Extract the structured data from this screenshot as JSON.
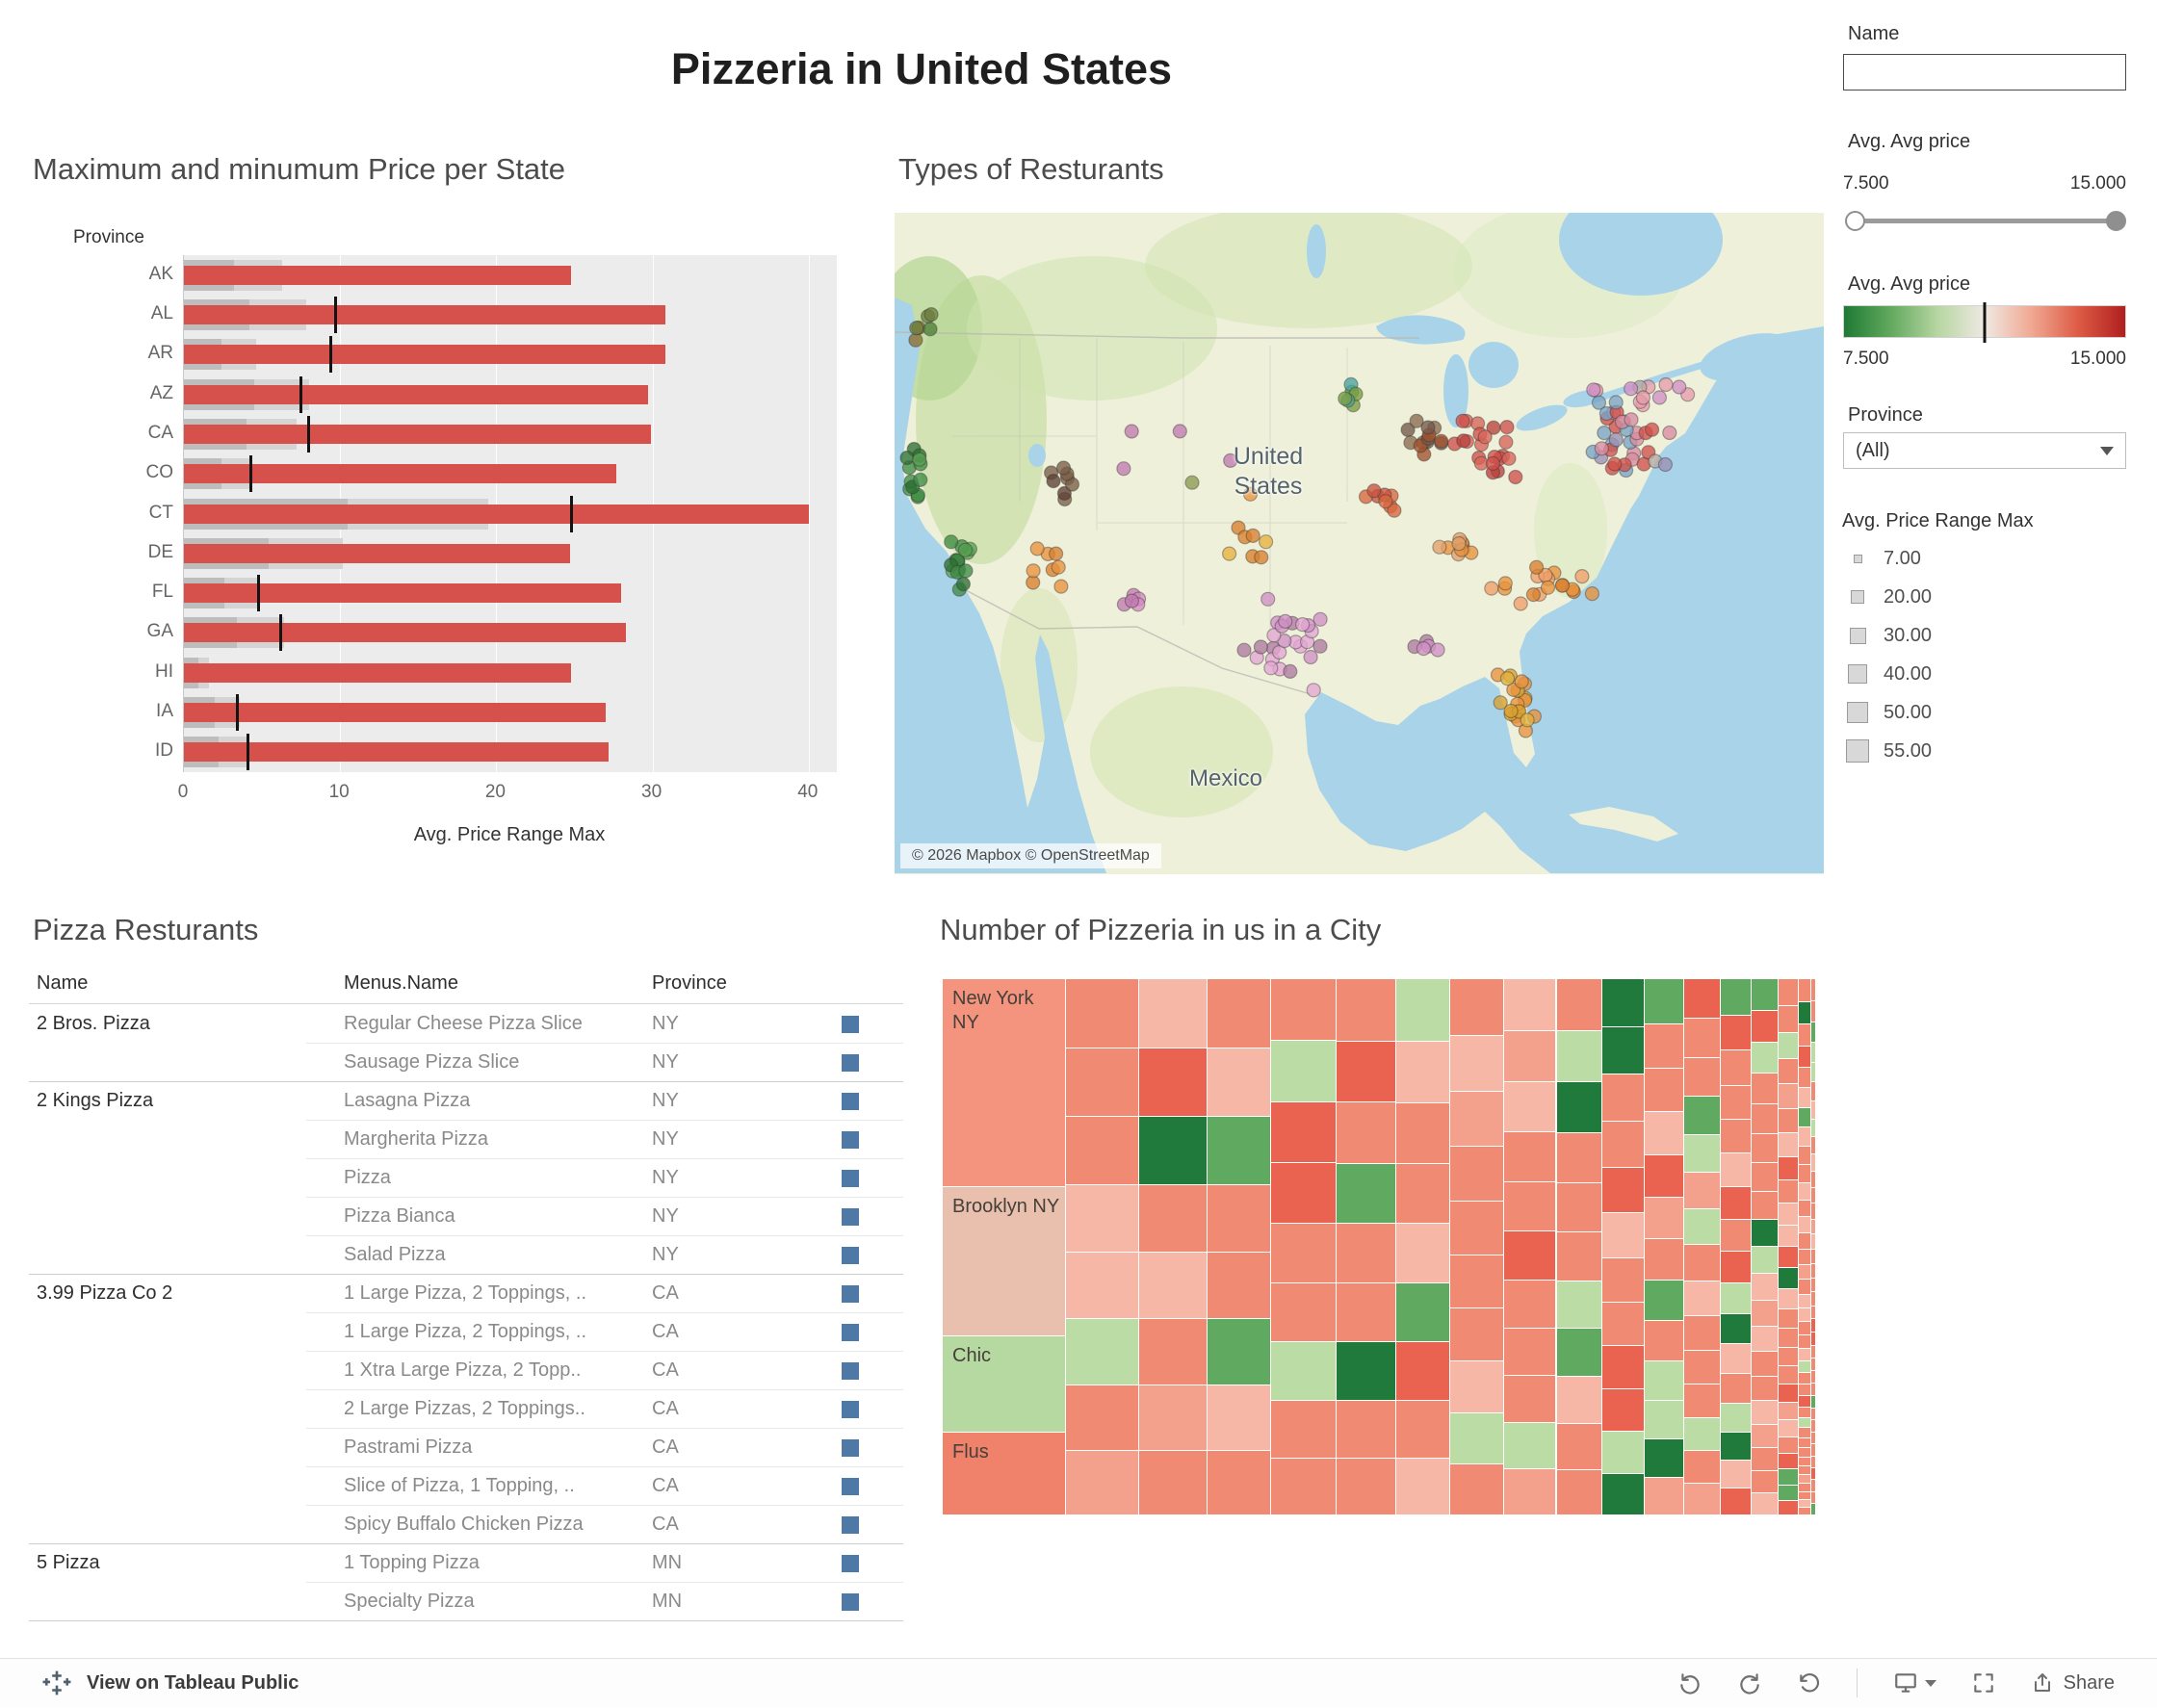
{
  "app": {
    "title": "Pizzeria in United States"
  },
  "toolbar": {
    "view_label": "View on Tableau Public",
    "share_label": "Share"
  },
  "sidebar": {
    "name_filter": {
      "label": "Name",
      "value": ""
    },
    "price_slider": {
      "title": "Avg. Avg price",
      "min_label": "7.500",
      "max_label": "15.000"
    },
    "color_legend": {
      "title": "Avg. Avg price",
      "min_label": "7.500",
      "max_label": "15.000",
      "stops": [
        "#1e7a34",
        "#63a95f",
        "#b7d6a2",
        "#efe9e2",
        "#f0a893",
        "#dd5b45",
        "#b01f1f"
      ],
      "tick_pos": 0.5
    },
    "province_filter": {
      "label": "Province",
      "value": "(All)"
    },
    "size_legend": {
      "title": "Avg. Price Range Max",
      "items": [
        {
          "label": "7.00",
          "size": 9
        },
        {
          "label": "20.00",
          "size": 14
        },
        {
          "label": "30.00",
          "size": 17
        },
        {
          "label": "40.00",
          "size": 20
        },
        {
          "label": "50.00",
          "size": 22
        },
        {
          "label": "55.00",
          "size": 24
        }
      ]
    }
  },
  "chart_data": [
    {
      "type": "bar",
      "title": "Maximum and minumum Price per State",
      "row_header": "Province",
      "xlabel": "Avg. Price Range Max",
      "x_ticks": [
        0,
        10,
        20,
        30,
        40
      ],
      "x_max": 41.8,
      "bar_color": "#d6504c",
      "band_color": "#d4d4d4",
      "band_dark_color": "#bdbdbd",
      "ref_color": "#141414",
      "states": [
        {
          "label": "AK",
          "max": 24.8,
          "band": 6.3,
          "band_dark": 3.2,
          "ref": null
        },
        {
          "label": "AL",
          "max": 30.8,
          "band": 7.8,
          "band_dark": 4.2,
          "ref": 9.7
        },
        {
          "label": "AR",
          "max": 30.8,
          "band": 4.6,
          "band_dark": 2.4,
          "ref": 9.4
        },
        {
          "label": "AZ",
          "max": 29.7,
          "band": 8.0,
          "band_dark": 4.5,
          "ref": 7.5
        },
        {
          "label": "CA",
          "max": 29.9,
          "band": 7.2,
          "band_dark": 4.0,
          "ref": 8.0
        },
        {
          "label": "CO",
          "max": 27.7,
          "band": 4.4,
          "band_dark": 2.4,
          "ref": 4.3
        },
        {
          "label": "CT",
          "max": 40.0,
          "band": 19.5,
          "band_dark": 10.5,
          "ref": 24.8
        },
        {
          "label": "DE",
          "max": 24.7,
          "band": 10.2,
          "band_dark": 5.4,
          "ref": null
        },
        {
          "label": "FL",
          "max": 28.0,
          "band": 4.9,
          "band_dark": 2.6,
          "ref": 4.8
        },
        {
          "label": "GA",
          "max": 28.3,
          "band": 6.4,
          "band_dark": 3.4,
          "ref": 6.2
        },
        {
          "label": "HI",
          "max": 24.8,
          "band": 1.6,
          "band_dark": 0.9,
          "ref": null
        },
        {
          "label": "IA",
          "max": 27.0,
          "band": 3.6,
          "band_dark": 2.0,
          "ref": 3.4
        },
        {
          "label": "ID",
          "max": 27.2,
          "band": 4.1,
          "band_dark": 2.2,
          "ref": 4.1
        }
      ]
    },
    {
      "type": "scatter",
      "title": "Types of Resturants",
      "map_labels": {
        "country_line1": "United",
        "country_line2": "States",
        "mexico": "Mexico"
      },
      "attribution": "© 2026 Mapbox © OpenStreetMap",
      "seed": 42,
      "dot_radius": 7,
      "clusters": [
        {
          "region": "Pacific Northwest",
          "cx": 30,
          "cy": 112,
          "rx": 24,
          "ry": 24,
          "n": 6,
          "colors": [
            "#6b7f3f",
            "#4e7d38",
            "#8c6d31"
          ]
        },
        {
          "region": "Northern California",
          "cx": 22,
          "cy": 278,
          "rx": 16,
          "ry": 38,
          "n": 12,
          "colors": [
            "#3f8c44",
            "#57a052",
            "#2e7033"
          ]
        },
        {
          "region": "Southern California",
          "cx": 66,
          "cy": 366,
          "rx": 24,
          "ry": 30,
          "n": 15,
          "colors": [
            "#3f8c44",
            "#57a052",
            "#2e7033"
          ]
        },
        {
          "region": "Arizona Nevada",
          "cx": 160,
          "cy": 372,
          "rx": 20,
          "ry": 30,
          "n": 8,
          "colors": [
            "#e8923c",
            "#d97f2e"
          ]
        },
        {
          "region": "Colorado",
          "cx": 180,
          "cy": 280,
          "rx": 24,
          "ry": 20,
          "n": 8,
          "colors": [
            "#7a5e47",
            "#8c6d31",
            "#5d4037"
          ]
        },
        {
          "region": "New Mexico",
          "cx": 245,
          "cy": 400,
          "rx": 18,
          "ry": 18,
          "n": 5,
          "colors": [
            "#c27ab0",
            "#d48ac0"
          ]
        },
        {
          "region": "Texas",
          "cx": 405,
          "cy": 452,
          "rx": 55,
          "ry": 52,
          "n": 26,
          "colors": [
            "#cf8fc4",
            "#b07aa1",
            "#e3a6d2"
          ]
        },
        {
          "region": "Oklahoma Kansas",
          "cx": 374,
          "cy": 340,
          "rx": 32,
          "ry": 20,
          "n": 7,
          "colors": [
            "#e8b13c",
            "#d97f2e"
          ]
        },
        {
          "region": "Minnesota",
          "cx": 470,
          "cy": 190,
          "rx": 22,
          "ry": 18,
          "n": 6,
          "colors": [
            "#4aa3a0",
            "#57a052",
            "#7a9e3f"
          ]
        },
        {
          "region": "Chicago Milwaukee",
          "cx": 549,
          "cy": 230,
          "rx": 26,
          "ry": 24,
          "n": 13,
          "colors": [
            "#8a6a4f",
            "#75584a",
            "#a0522d"
          ]
        },
        {
          "region": "Missouri",
          "cx": 500,
          "cy": 297,
          "rx": 24,
          "ry": 18,
          "n": 8,
          "colors": [
            "#d9663f",
            "#c9533f"
          ]
        },
        {
          "region": "Ohio Valley",
          "cx": 620,
          "cy": 242,
          "rx": 40,
          "ry": 36,
          "n": 22,
          "colors": [
            "#cf4f4a",
            "#b8413d",
            "#d96459"
          ]
        },
        {
          "region": "Kentucky Tennessee",
          "cx": 592,
          "cy": 344,
          "rx": 36,
          "ry": 20,
          "n": 10,
          "colors": [
            "#e8923c",
            "#e2a06a"
          ]
        },
        {
          "region": "Southeast",
          "cx": 672,
          "cy": 388,
          "rx": 55,
          "ry": 34,
          "n": 18,
          "colors": [
            "#e8923c",
            "#ef9f68",
            "#d97f2e"
          ]
        },
        {
          "region": "Florida",
          "cx": 648,
          "cy": 512,
          "rx": 24,
          "ry": 46,
          "n": 20,
          "colors": [
            "#e0b13f",
            "#d9a02e",
            "#e8923c"
          ]
        },
        {
          "region": "Mid-Atlantic",
          "cx": 764,
          "cy": 240,
          "rx": 48,
          "ry": 34,
          "n": 26,
          "colors": [
            "#b9a9a4",
            "#d98ca0",
            "#cf4f4a",
            "#7aa3c4",
            "#9b8fb5"
          ]
        },
        {
          "region": "New England",
          "cx": 766,
          "cy": 186,
          "rx": 60,
          "ry": 18,
          "n": 12,
          "colors": [
            "#e79cac",
            "#b9a9a4",
            "#cf8fc4"
          ]
        },
        {
          "region": "Gulf Coast",
          "cx": 550,
          "cy": 450,
          "rx": 20,
          "ry": 14,
          "n": 5,
          "colors": [
            "#cf8fc4",
            "#b07aa1"
          ]
        },
        {
          "region": "Great Plains",
          "cx": 300,
          "cy": 255,
          "rx": 85,
          "ry": 60,
          "n": 6,
          "colors": [
            "#8c9a4f",
            "#e8923c",
            "#c27ab0"
          ]
        },
        {
          "region": "Upstate NY",
          "cx": 742,
          "cy": 210,
          "rx": 30,
          "ry": 16,
          "n": 8,
          "colors": [
            "#d98ca0",
            "#7aa3c4",
            "#cf4f4a"
          ]
        }
      ]
    },
    {
      "type": "table",
      "title": "Pizza Resturants",
      "columns": [
        "Name",
        "Menus.Name",
        "Province"
      ],
      "mark_color": "#4e79a7",
      "rows": [
        {
          "name": "2 Bros. Pizza",
          "menu": "Regular Cheese Pizza Slice",
          "prov": "NY"
        },
        {
          "name": "",
          "menu": "Sausage Pizza Slice",
          "prov": "NY"
        },
        {
          "name": "2 Kings Pizza",
          "menu": "Lasagna Pizza",
          "prov": "NY"
        },
        {
          "name": "",
          "menu": "Margherita Pizza",
          "prov": "NY"
        },
        {
          "name": "",
          "menu": "Pizza",
          "prov": "NY"
        },
        {
          "name": "",
          "menu": "Pizza Bianca",
          "prov": "NY"
        },
        {
          "name": "",
          "menu": "Salad Pizza",
          "prov": "NY"
        },
        {
          "name": "3.99 Pizza Co 2",
          "menu": "1 Large Pizza, 2 Toppings, ..",
          "prov": "CA"
        },
        {
          "name": "",
          "menu": "1 Large Pizza, 2 Toppings, ..",
          "prov": "CA"
        },
        {
          "name": "",
          "menu": "1 Xtra Large Pizza, 2 Topp..",
          "prov": "CA"
        },
        {
          "name": "",
          "menu": "2 Large Pizzas, 2 Toppings..",
          "prov": "CA"
        },
        {
          "name": "",
          "menu": "Pastrami Pizza",
          "prov": "CA"
        },
        {
          "name": "",
          "menu": "Slice of Pizza, 1 Topping, ..",
          "prov": "CA"
        },
        {
          "name": "",
          "menu": "Spicy Buffalo Chicken Pizza",
          "prov": "CA"
        },
        {
          "name": "5 Pizza",
          "menu": "1 Topping Pizza",
          "prov": "MN"
        },
        {
          "name": "",
          "menu": "Specialty Pizza",
          "prov": "MN"
        }
      ]
    },
    {
      "type": "treemap",
      "title": "Number of Pizzeria in us in a City",
      "seed": 7,
      "cities": [
        {
          "name": "New York NY",
          "value": 100,
          "color": "#f4947e"
        },
        {
          "name": "Brooklyn NY",
          "value": 72,
          "color": "#e9bfad"
        },
        {
          "name": "Chic",
          "value": 46,
          "color": "#b5d9a0"
        },
        {
          "name": "Flus",
          "value": 40,
          "color": "#f0816b"
        }
      ],
      "tail": {
        "count": 260,
        "start": 20,
        "min": 0.2,
        "power": 2.4
      },
      "palette": [
        {
          "c": "#f08a72",
          "w": 0.4
        },
        {
          "c": "#f6b7a7",
          "w": 0.16
        },
        {
          "c": "#ea6350",
          "w": 0.14
        },
        {
          "c": "#f3a18c",
          "w": 0.1
        },
        {
          "c": "#bcdca6",
          "w": 0.08
        },
        {
          "c": "#5fa961",
          "w": 0.06
        },
        {
          "c": "#1f7a3c",
          "w": 0.06
        }
      ]
    }
  ]
}
